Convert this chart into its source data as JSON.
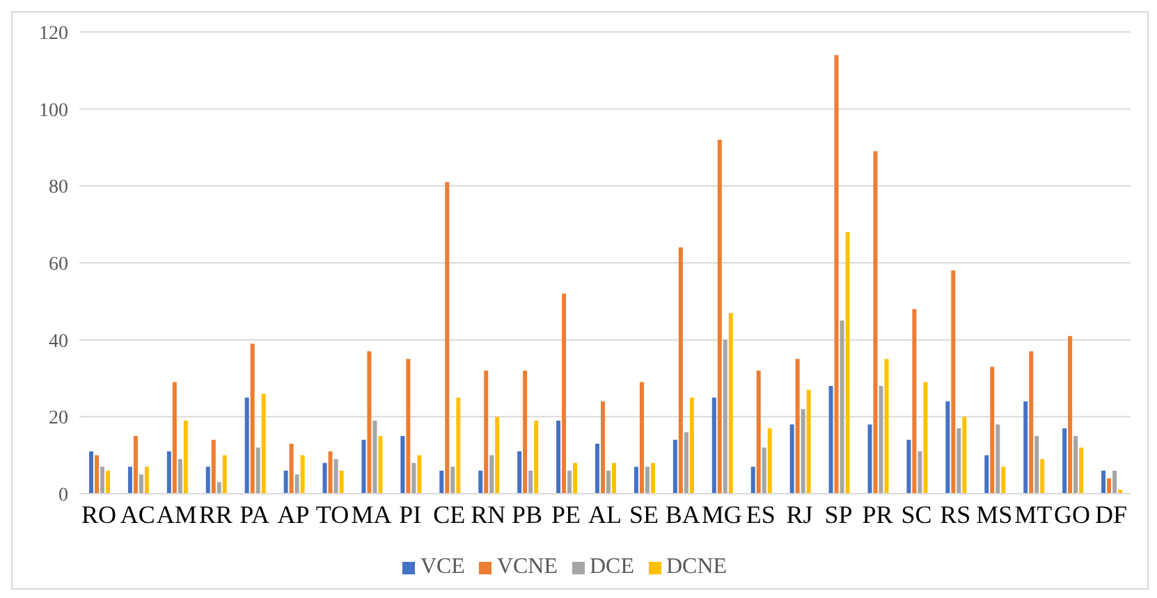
{
  "chart_data": {
    "type": "bar",
    "categories": [
      "RO",
      "AC",
      "AM",
      "RR",
      "PA",
      "AP",
      "TO",
      "MA",
      "PI",
      "CE",
      "RN",
      "PB",
      "PE",
      "AL",
      "SE",
      "BA",
      "MG",
      "ES",
      "RJ",
      "SP",
      "PR",
      "SC",
      "RS",
      "MS",
      "MT",
      "GO",
      "DF"
    ],
    "series": [
      {
        "name": "VCE",
        "color": "#4472c4",
        "values": [
          11,
          7,
          11,
          7,
          25,
          6,
          8,
          14,
          15,
          6,
          6,
          11,
          19,
          13,
          7,
          14,
          25,
          7,
          18,
          28,
          18,
          14,
          24,
          10,
          24,
          17,
          6
        ]
      },
      {
        "name": "VCNE",
        "color": "#ed7d31",
        "values": [
          10,
          15,
          29,
          14,
          39,
          13,
          11,
          37,
          35,
          81,
          32,
          32,
          52,
          24,
          29,
          64,
          92,
          32,
          35,
          114,
          89,
          48,
          58,
          33,
          37,
          41,
          4
        ]
      },
      {
        "name": "DCE",
        "color": "#a5a5a5",
        "values": [
          7,
          5,
          9,
          3,
          12,
          5,
          9,
          19,
          8,
          7,
          10,
          6,
          6,
          6,
          7,
          16,
          40,
          12,
          22,
          45,
          28,
          11,
          17,
          18,
          15,
          15,
          6
        ]
      },
      {
        "name": "DCNE",
        "color": "#ffc000",
        "values": [
          6,
          7,
          19,
          10,
          26,
          10,
          6,
          15,
          10,
          25,
          20,
          19,
          8,
          8,
          8,
          25,
          47,
          17,
          27,
          68,
          35,
          29,
          20,
          7,
          9,
          12,
          1
        ]
      }
    ],
    "ylim": [
      0,
      120
    ],
    "yticks": [
      0,
      20,
      40,
      60,
      80,
      100,
      120
    ],
    "grid": "y",
    "legend": "bottom"
  }
}
